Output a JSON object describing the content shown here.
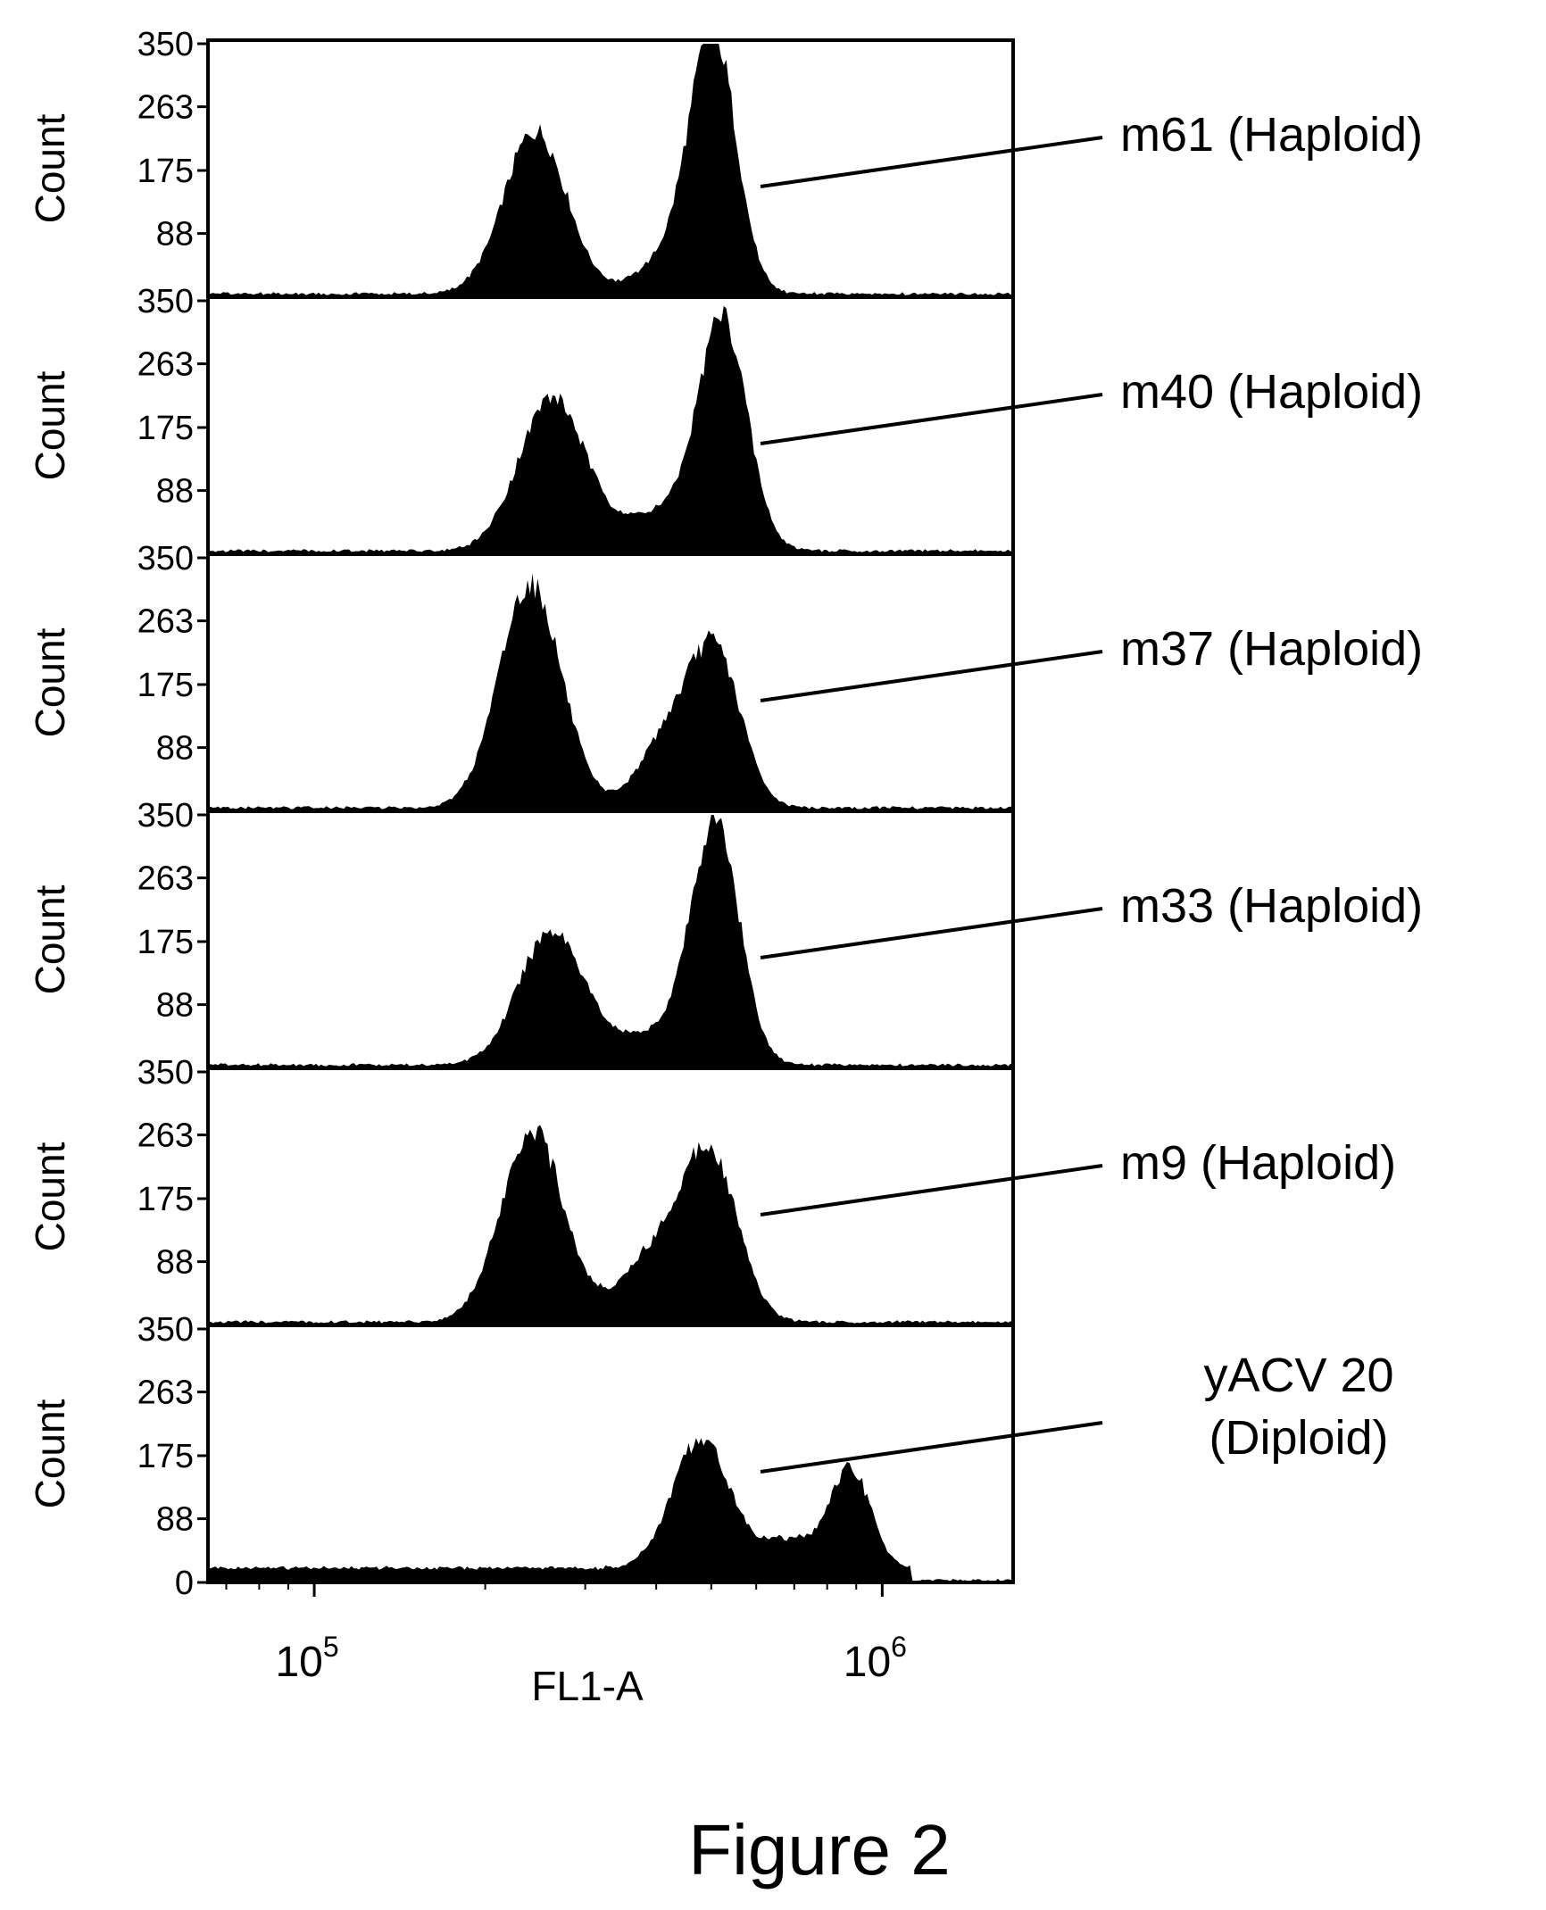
{
  "figure_caption": "Figure 2",
  "chart_data": {
    "type": "area",
    "layout": "stacked flow-cytometry histograms sharing one x axis",
    "xlabel": "FL1-A",
    "xscale": "log",
    "xlim": [
      65000,
      1700000
    ],
    "xticks": [
      {
        "value": 100000,
        "mantissa": "10",
        "exponent": "5"
      },
      {
        "value": 1000000,
        "mantissa": "10",
        "exponent": "6"
      }
    ],
    "ylabel": "Count",
    "ylim": [
      0,
      350
    ],
    "yticks": [
      0,
      88,
      175,
      263,
      350
    ],
    "ytick_labels": [
      "0",
      "88",
      "175",
      "263",
      "350"
    ],
    "grid": false,
    "fill_color": "#000000",
    "panels": [
      {
        "label": "m61 (Haploid)",
        "peaks": [
          {
            "center": 245000,
            "height": 225,
            "width": 0.055
          },
          {
            "center": 505000,
            "height": 330,
            "width": 0.04
          },
          {
            "center": 440000,
            "height": 60,
            "width": 0.06
          }
        ]
      },
      {
        "label": "m40 (Haploid)",
        "peaks": [
          {
            "center": 262000,
            "height": 210,
            "width": 0.058
          },
          {
            "center": 525000,
            "height": 300,
            "width": 0.042
          },
          {
            "center": 420000,
            "height": 55,
            "width": 0.08
          }
        ]
      },
      {
        "label": "m37 (Haploid)",
        "peaks": [
          {
            "center": 240000,
            "height": 310,
            "width": 0.055
          },
          {
            "center": 510000,
            "height": 205,
            "width": 0.045
          },
          {
            "center": 420000,
            "height": 95,
            "width": 0.05
          }
        ]
      },
      {
        "label": "m33 (Haploid)",
        "peaks": [
          {
            "center": 262000,
            "height": 185,
            "width": 0.058
          },
          {
            "center": 510000,
            "height": 320,
            "width": 0.042
          },
          {
            "center": 410000,
            "height": 45,
            "width": 0.07
          }
        ]
      },
      {
        "label": "m9 (Haploid)",
        "peaks": [
          {
            "center": 242000,
            "height": 265,
            "width": 0.055
          },
          {
            "center": 500000,
            "height": 220,
            "width": 0.048
          },
          {
            "center": 400000,
            "height": 95,
            "width": 0.06
          }
        ]
      },
      {
        "label_lines": [
          "yACV 20",
          "(Diploid)"
        ],
        "baseline": 20,
        "peaks": [
          {
            "center": 480000,
            "height": 180,
            "width": 0.05
          },
          {
            "center": 880000,
            "height": 135,
            "width": 0.035
          },
          {
            "center": 690000,
            "height": 40,
            "width": 0.05
          }
        ]
      }
    ]
  }
}
